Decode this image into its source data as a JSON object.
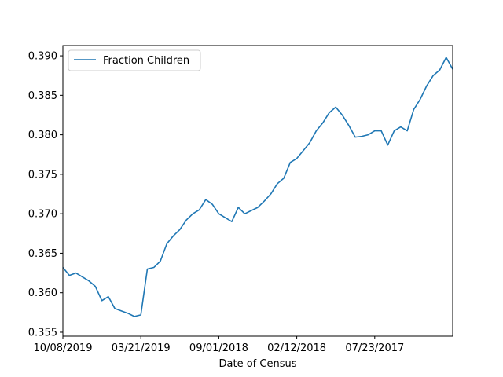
{
  "chart_data": {
    "type": "line",
    "title": "",
    "xlabel": "Date of Census",
    "ylabel": "",
    "x_ticks": [
      "10/08/2019",
      "03/21/2019",
      "09/01/2018",
      "02/12/2018",
      "07/23/2017"
    ],
    "ylim": [
      0.3545,
      0.3913
    ],
    "y_ticks": [
      0.355,
      0.36,
      0.365,
      0.37,
      0.375,
      0.38,
      0.385,
      0.39
    ],
    "y_tick_labels": [
      "0.355",
      "0.360",
      "0.365",
      "0.370",
      "0.375",
      "0.380",
      "0.385",
      "0.390"
    ],
    "grid": false,
    "legend_position": "upper left",
    "series": [
      {
        "name": "Fraction Children",
        "color": "#1f77b4",
        "x": [
          "10/08/2019",
          "09/22/2019",
          "09/05/2019",
          "08/19/2019",
          "08/02/2019",
          "07/16/2019",
          "06/29/2019",
          "06/12/2019",
          "05/26/2019",
          "05/09/2019",
          "04/22/2019",
          "04/05/2019",
          "03/21/2019",
          "03/04/2019",
          "02/15/2019",
          "01/29/2019",
          "01/12/2019",
          "12/26/2018",
          "12/09/2018",
          "11/22/2018",
          "11/05/2018",
          "10/19/2018",
          "10/02/2018",
          "09/15/2018",
          "09/01/2018",
          "08/15/2018",
          "07/29/2018",
          "07/12/2018",
          "06/25/2018",
          "06/08/2018",
          "05/22/2018",
          "05/05/2018",
          "04/18/2018",
          "04/01/2018",
          "03/15/2018",
          "02/26/2018",
          "02/12/2018",
          "01/26/2018",
          "01/09/2018",
          "12/23/2017",
          "12/06/2017",
          "11/19/2017",
          "11/02/2017",
          "10/16/2017",
          "09/29/2017",
          "09/12/2017",
          "08/26/2017",
          "08/09/2017",
          "07/23/2017",
          "07/06/2017",
          "06/19/2017",
          "06/02/2017",
          "05/16/2017",
          "04/29/2017",
          "04/12/2017",
          "03/26/2017",
          "03/09/2017",
          "02/20/2017",
          "02/03/2017",
          "01/17/2017",
          "01/01/2017"
        ],
        "values": [
          0.3632,
          0.3622,
          0.3625,
          0.362,
          0.3615,
          0.3608,
          0.359,
          0.3595,
          0.358,
          0.3577,
          0.3574,
          0.357,
          0.3572,
          0.363,
          0.3632,
          0.364,
          0.3662,
          0.3672,
          0.368,
          0.3692,
          0.37,
          0.3705,
          0.3718,
          0.3712,
          0.37,
          0.3695,
          0.369,
          0.3708,
          0.37,
          0.3704,
          0.3708,
          0.3716,
          0.3725,
          0.3738,
          0.3745,
          0.3765,
          0.377,
          0.378,
          0.379,
          0.3805,
          0.3815,
          0.3828,
          0.3835,
          0.3825,
          0.3812,
          0.3797,
          0.3798,
          0.38,
          0.3805,
          0.3805,
          0.3787,
          0.3805,
          0.381,
          0.3805,
          0.3832,
          0.3845,
          0.3862,
          0.3875,
          0.3882,
          0.3898,
          0.3883
        ]
      }
    ]
  }
}
